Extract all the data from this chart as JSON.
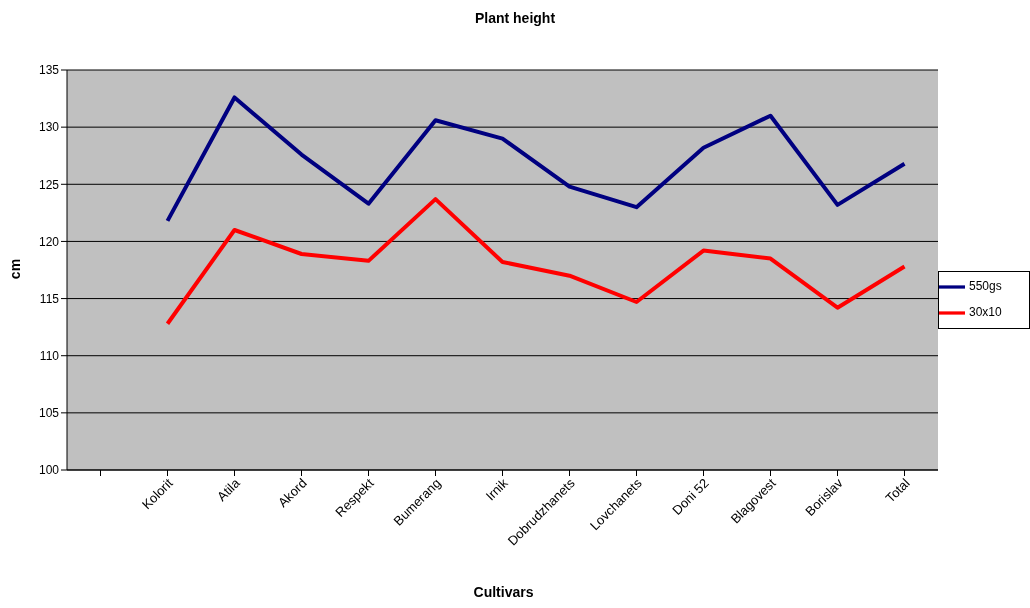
{
  "chart_data": {
    "type": "line",
    "title": "Plant height",
    "xlabel": "Cultivars",
    "ylabel": "cm",
    "categories": [
      null,
      "Kolorit",
      "Atila",
      "Akord",
      "Respekt",
      "Bumerang",
      "Irnik",
      "Dobrudzhanets",
      "Lovchanets",
      "Doni 52",
      "Blagovest",
      "Borislav",
      "Total"
    ],
    "series": [
      {
        "name": "550gs",
        "color": "#000080",
        "values": [
          null,
          121.8,
          132.6,
          127.6,
          123.3,
          130.6,
          129.0,
          124.8,
          123.0,
          128.2,
          131.0,
          123.2,
          126.8
        ]
      },
      {
        "name": "30x10",
        "color": "#ff0000",
        "values": [
          null,
          112.8,
          121.0,
          118.9,
          118.3,
          123.7,
          118.2,
          117.0,
          114.7,
          119.2,
          118.5,
          114.2,
          117.8
        ]
      }
    ],
    "ylim": [
      100,
      135
    ],
    "yticks": [
      100,
      105,
      110,
      115,
      120,
      125,
      130,
      135
    ],
    "grid": "y",
    "legend": "right",
    "marker": "none",
    "line_style": "solid"
  }
}
